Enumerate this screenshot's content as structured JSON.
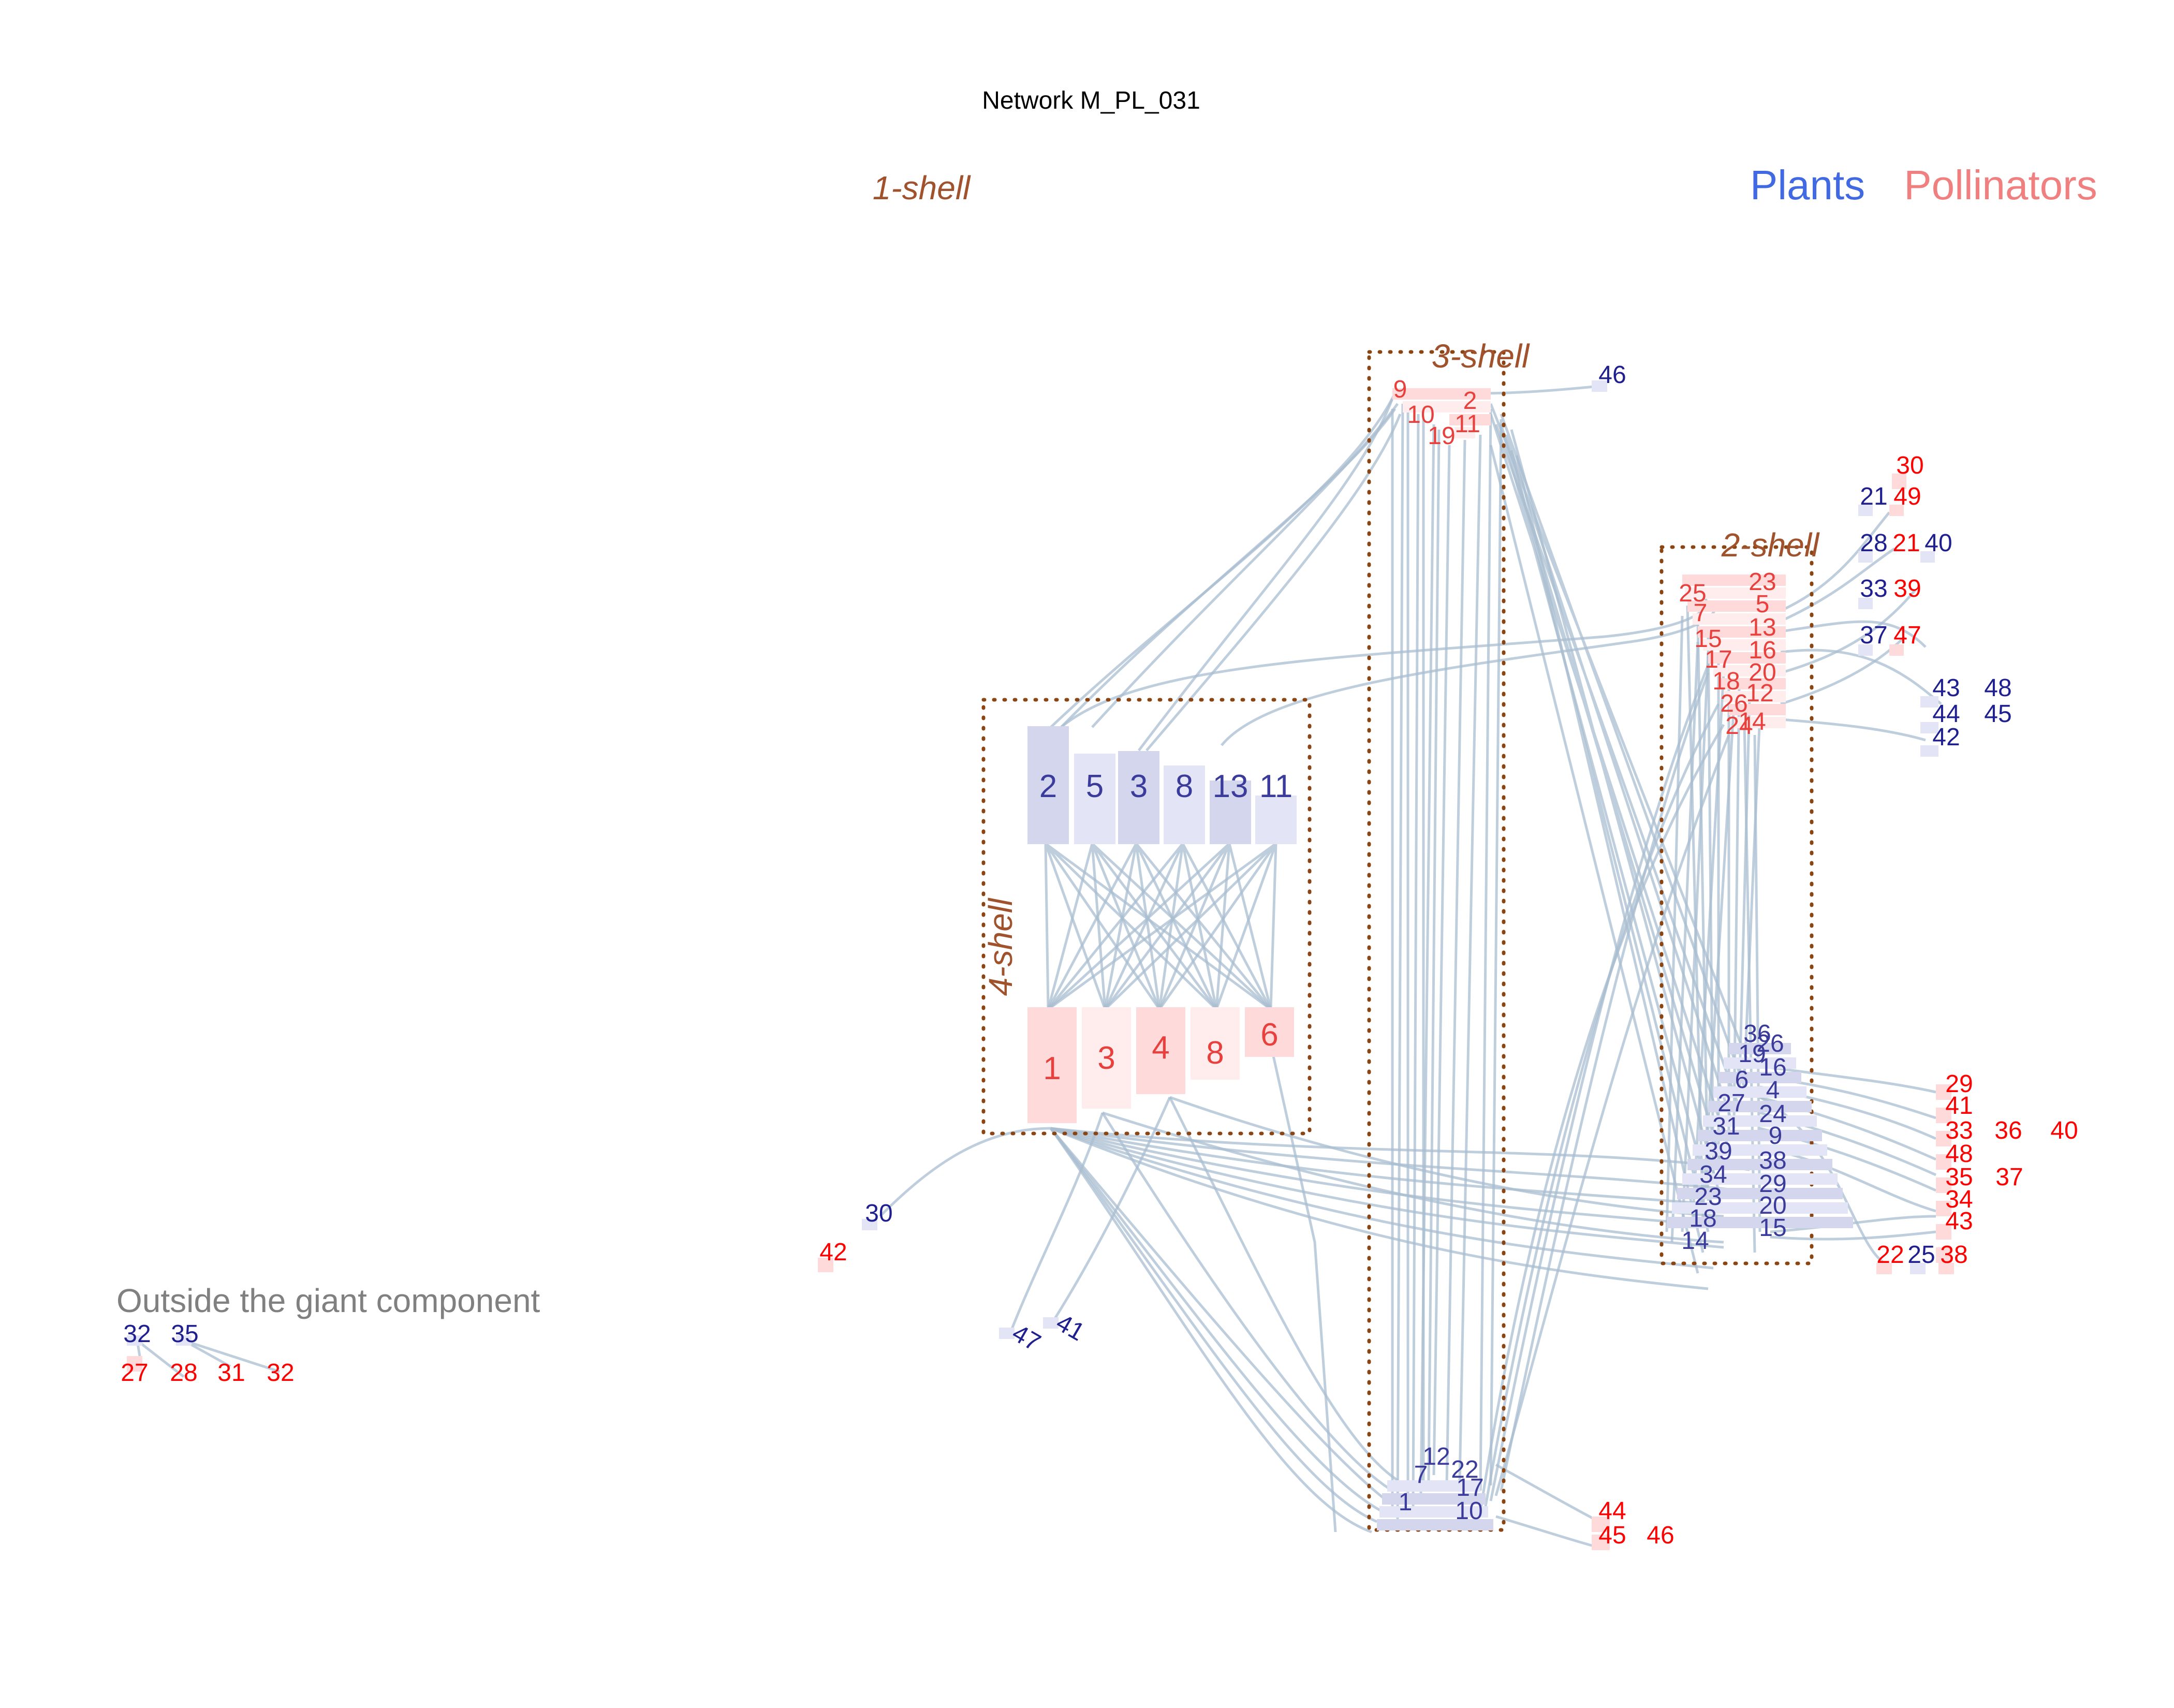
{
  "title": "Network M_PL_031",
  "legend": {
    "plants": "Plants",
    "pollinators": "Pollinators"
  },
  "colors": {
    "plant_label": "#1f1f8f",
    "plant_label_core": "#3b3b9b",
    "plant_fill": "#d4d6ee",
    "pollinator_label": "#ff0000",
    "pollinator_label_core": "#e8403c",
    "pollinator_fill": "#ffdada",
    "link": "#a9bdd0",
    "shell_box": "#8b4513",
    "shell_text": "#a0522d"
  },
  "shells": {
    "s1": "1-shell",
    "s2": "2-shell",
    "s3": "3-shell",
    "s4": "4-shell"
  },
  "outside_label": "Outside the giant component",
  "nodes": {
    "k4_plants": [
      "2",
      "5",
      "3",
      "8",
      "13",
      "11"
    ],
    "k4_pollinators": [
      "1",
      "3",
      "4",
      "8",
      "6"
    ],
    "k3_pollinators": [
      "9",
      "2",
      "10",
      "11",
      "19"
    ],
    "k3_plants": [
      "12",
      "22",
      "7",
      "17",
      "1",
      "10"
    ],
    "k3_tail_plant": "46",
    "k3_tail_pollinators": [
      "44",
      "45",
      "46"
    ],
    "k2_pollinators": [
      "25",
      "23",
      "7",
      "5",
      "15",
      "13",
      "17",
      "16",
      "18",
      "20",
      "26",
      "12",
      "14",
      "24"
    ],
    "k2_plants": [
      "36",
      "26",
      "19",
      "16",
      "6",
      "4",
      "27",
      "24",
      "31",
      "9",
      "39",
      "38",
      "34",
      "29",
      "23",
      "20",
      "18",
      "15",
      "14"
    ],
    "tail_top": [
      {
        "a": "30"
      },
      {
        "a": "21",
        "b": "49"
      },
      {
        "a": "28",
        "b": "21",
        "c": "40"
      },
      {
        "a": "33",
        "b": "39"
      },
      {
        "a": "37",
        "b": "47"
      }
    ],
    "tail_plants_right": [
      "43",
      "48",
      "44",
      "45",
      "42"
    ],
    "tail_pollinators_right": [
      "29",
      "41",
      "33",
      "36",
      "40",
      "48",
      "35",
      "37",
      "34",
      "43"
    ],
    "tail_bottom": [
      "22",
      "25",
      "38"
    ],
    "left_tail_plant": "30",
    "left_tail_pollinator": "42",
    "rotated_plants": [
      "47",
      "41"
    ],
    "outside_plants": [
      "32",
      "35"
    ],
    "outside_pollinators": [
      "27",
      "28",
      "31",
      "32"
    ]
  }
}
